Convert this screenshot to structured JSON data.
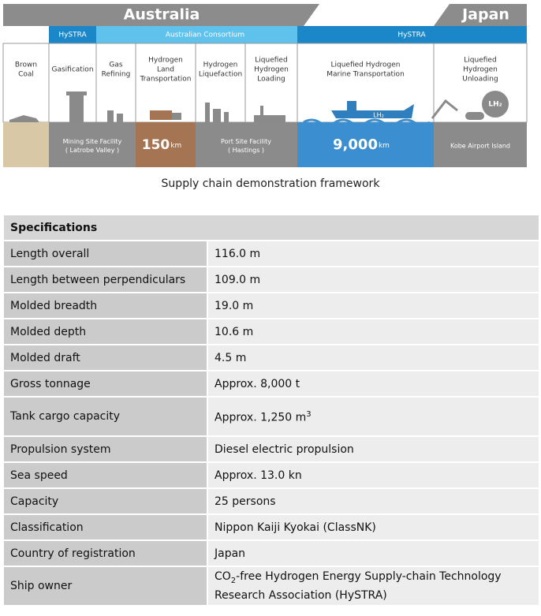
{
  "diagram": {
    "regions": [
      "Australia",
      "Japan"
    ],
    "bands": [
      "HySTRA",
      "Australian Consortium",
      "HySTRA"
    ],
    "stages": [
      [
        "Brown",
        "Coal"
      ],
      [
        "Gasification"
      ],
      [
        "Gas",
        "Refining"
      ],
      [
        "Hydrogen",
        "Land",
        "Transportation"
      ],
      [
        "Hydrogen",
        "Liquefaction"
      ],
      [
        "Liquefied",
        "Hydrogen",
        "Loading"
      ],
      [
        "Liquefied Hydrogen",
        "Marine Transportation"
      ],
      [
        "Liquefied",
        "Hydrogen",
        "Unloading"
      ]
    ],
    "facilities": [
      [
        "Mining Site Facility",
        "( Latrobe Valley )"
      ],
      [
        "Port Site Facility",
        "( Hastings )"
      ],
      [
        "Kobe Airport Island"
      ]
    ],
    "distances": [
      {
        "value": "150",
        "unit": "km"
      },
      {
        "value": "9,000",
        "unit": "km"
      }
    ],
    "icon_labels": [
      "LH₂",
      "LH₂"
    ],
    "caption": "Supply chain demonstration framework"
  },
  "table": {
    "header": "Specifications",
    "rows": [
      {
        "label": "Length overall",
        "parts": [
          {
            "text": "116.0 m"
          }
        ]
      },
      {
        "label": "Length between perpendiculars",
        "parts": [
          {
            "text": "109.0 m"
          }
        ]
      },
      {
        "label": "Molded breadth",
        "parts": [
          {
            "text": "19.0 m"
          }
        ]
      },
      {
        "label": "Molded depth",
        "parts": [
          {
            "text": "10.6 m"
          }
        ]
      },
      {
        "label": "Molded draft",
        "parts": [
          {
            "text": "4.5 m"
          }
        ]
      },
      {
        "label": "Gross tonnage",
        "parts": [
          {
            "text": "Approx. 8,000 t"
          }
        ]
      },
      {
        "label": "Tank cargo capacity",
        "parts": [
          {
            "text": "Approx. 1,250 m"
          },
          {
            "sup": "3"
          }
        ]
      },
      {
        "label": "Propulsion system",
        "parts": [
          {
            "text": "Diesel electric propulsion"
          }
        ]
      },
      {
        "label": "Sea speed",
        "parts": [
          {
            "text": "Approx. 13.0 kn"
          }
        ]
      },
      {
        "label": "Capacity",
        "parts": [
          {
            "text": "25 persons"
          }
        ]
      },
      {
        "label": "Classification",
        "parts": [
          {
            "text": "Nippon Kaiji Kyokai (ClassNK)"
          }
        ]
      },
      {
        "label": "Country of registration",
        "parts": [
          {
            "text": "Japan"
          }
        ]
      },
      {
        "label": "Ship owner",
        "parts": [
          {
            "text": "CO"
          },
          {
            "sub": "2"
          },
          {
            "text": "-free Hydrogen Energy Supply-chain Technology Research Association (HySTRA)"
          }
        ]
      }
    ]
  }
}
